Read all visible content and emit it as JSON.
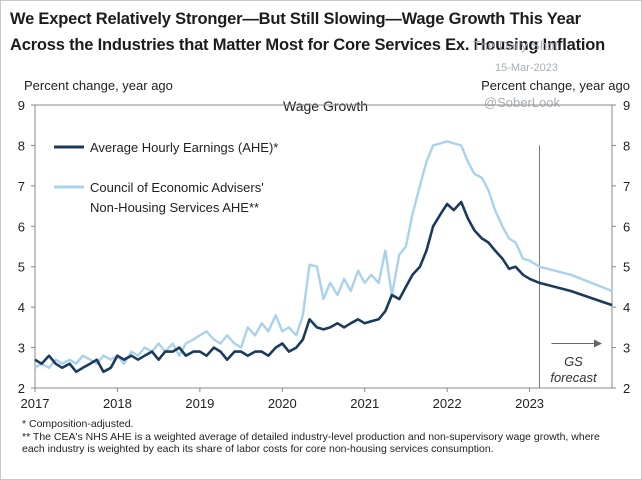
{
  "title": "We Expect Relatively Stronger—But Still Slowing—Wage Growth This Year Across the Industries that Matter Most for Core Services Ex. Housing Inflation",
  "watermark": {
    "source": "The Daily Shot",
    "date": "15-Mar-2023",
    "handle": "@SoberLook"
  },
  "footnotes": [
    "* Composition-adjusted.",
    "** The CEA's NHS AHE is a weighted average of detailed industry-level production and non-supervisory wage growth, where each industry is weighted by each its share of labor costs for core non-housing services consumption."
  ],
  "chart_data": {
    "type": "line",
    "title": "Wage Growth",
    "ylabel_left": "Percent change, year ago",
    "ylabel_right": "Percent change, year ago",
    "ylim": [
      2,
      9
    ],
    "yticks": [
      "2",
      "3",
      "4",
      "5",
      "6",
      "7",
      "8",
      "9"
    ],
    "xlim": [
      2017.0,
      2024.0
    ],
    "xticks": [
      {
        "value": 2017,
        "label": "2017"
      },
      {
        "value": 2018,
        "label": "2018"
      },
      {
        "value": 2019,
        "label": "2019"
      },
      {
        "value": 2020,
        "label": "2020"
      },
      {
        "value": 2021,
        "label": "2021"
      },
      {
        "value": 2022,
        "label": "2022"
      },
      {
        "value": 2023,
        "label": "2023"
      }
    ],
    "forecast_start": 2023.12,
    "forecast_label": "GS\nforecast",
    "series": [
      {
        "name": "Average Hourly Earnings (AHE)*",
        "color": "#1b3a5c",
        "x": [
          2017.0,
          2017.08,
          2017.17,
          2017.25,
          2017.33,
          2017.42,
          2017.5,
          2017.58,
          2017.67,
          2017.75,
          2017.83,
          2017.92,
          2018.0,
          2018.08,
          2018.17,
          2018.25,
          2018.33,
          2018.42,
          2018.5,
          2018.58,
          2018.67,
          2018.75,
          2018.83,
          2018.92,
          2019.0,
          2019.08,
          2019.17,
          2019.25,
          2019.33,
          2019.42,
          2019.5,
          2019.58,
          2019.67,
          2019.75,
          2019.83,
          2019.92,
          2020.0,
          2020.08,
          2020.17,
          2020.25,
          2020.33,
          2020.42,
          2020.5,
          2020.58,
          2020.67,
          2020.75,
          2020.83,
          2020.92,
          2021.0,
          2021.08,
          2021.17,
          2021.25,
          2021.33,
          2021.42,
          2021.5,
          2021.58,
          2021.67,
          2021.75,
          2021.83,
          2021.92,
          2022.0,
          2022.08,
          2022.17,
          2022.25,
          2022.33,
          2022.42,
          2022.5,
          2022.58,
          2022.67,
          2022.75,
          2022.83,
          2022.92,
          2023.0,
          2023.12,
          2023.5,
          2024.0
        ],
        "y": [
          2.7,
          2.6,
          2.8,
          2.6,
          2.5,
          2.6,
          2.4,
          2.5,
          2.6,
          2.7,
          2.4,
          2.5,
          2.8,
          2.7,
          2.8,
          2.7,
          2.8,
          2.9,
          2.7,
          2.9,
          2.9,
          3.0,
          2.8,
          2.9,
          2.9,
          2.8,
          3.0,
          2.9,
          2.7,
          2.9,
          2.9,
          2.8,
          2.9,
          2.9,
          2.8,
          3.0,
          3.1,
          2.9,
          3.0,
          3.2,
          3.7,
          3.5,
          3.45,
          3.5,
          3.6,
          3.5,
          3.6,
          3.7,
          3.6,
          3.65,
          3.7,
          3.9,
          4.3,
          4.2,
          4.5,
          4.8,
          5.0,
          5.4,
          6.0,
          6.3,
          6.55,
          6.4,
          6.6,
          6.2,
          5.9,
          5.7,
          5.6,
          5.4,
          5.2,
          4.95,
          5.0,
          4.8,
          4.7,
          4.6,
          4.4,
          4.05
        ]
      },
      {
        "name": "Council of Economic Advisers' Non-Housing Services AHE**",
        "color": "#a9d2ec",
        "x": [
          2017.0,
          2017.08,
          2017.17,
          2017.25,
          2017.33,
          2017.42,
          2017.5,
          2017.58,
          2017.67,
          2017.75,
          2017.83,
          2017.92,
          2018.0,
          2018.08,
          2018.17,
          2018.25,
          2018.33,
          2018.42,
          2018.5,
          2018.58,
          2018.67,
          2018.75,
          2018.83,
          2018.92,
          2019.0,
          2019.08,
          2019.17,
          2019.25,
          2019.33,
          2019.42,
          2019.5,
          2019.58,
          2019.67,
          2019.75,
          2019.83,
          2019.92,
          2020.0,
          2020.08,
          2020.17,
          2020.25,
          2020.33,
          2020.42,
          2020.5,
          2020.58,
          2020.67,
          2020.75,
          2020.83,
          2020.92,
          2021.0,
          2021.08,
          2021.17,
          2021.25,
          2021.33,
          2021.42,
          2021.5,
          2021.58,
          2021.67,
          2021.75,
          2021.83,
          2021.92,
          2022.0,
          2022.08,
          2022.17,
          2022.25,
          2022.33,
          2022.42,
          2022.5,
          2022.58,
          2022.67,
          2022.75,
          2022.83,
          2022.92,
          2023.0,
          2023.12,
          2023.5,
          2024.0
        ],
        "y": [
          2.5,
          2.6,
          2.5,
          2.7,
          2.6,
          2.7,
          2.6,
          2.8,
          2.7,
          2.6,
          2.8,
          2.7,
          2.8,
          2.6,
          2.9,
          2.8,
          3.0,
          2.9,
          3.1,
          2.9,
          3.1,
          2.8,
          3.1,
          3.2,
          3.3,
          3.4,
          3.2,
          3.1,
          3.3,
          3.1,
          3.0,
          3.5,
          3.3,
          3.6,
          3.4,
          3.8,
          3.4,
          3.5,
          3.3,
          3.8,
          5.05,
          5.0,
          4.2,
          4.6,
          4.3,
          4.7,
          4.4,
          4.9,
          4.6,
          4.8,
          4.6,
          5.4,
          4.3,
          5.3,
          5.5,
          6.3,
          7.0,
          7.6,
          8.0,
          8.05,
          8.1,
          8.05,
          8.0,
          7.6,
          7.3,
          7.2,
          6.9,
          6.4,
          6.0,
          5.7,
          5.6,
          5.2,
          5.15,
          5.0,
          4.8,
          4.4
        ]
      }
    ]
  }
}
